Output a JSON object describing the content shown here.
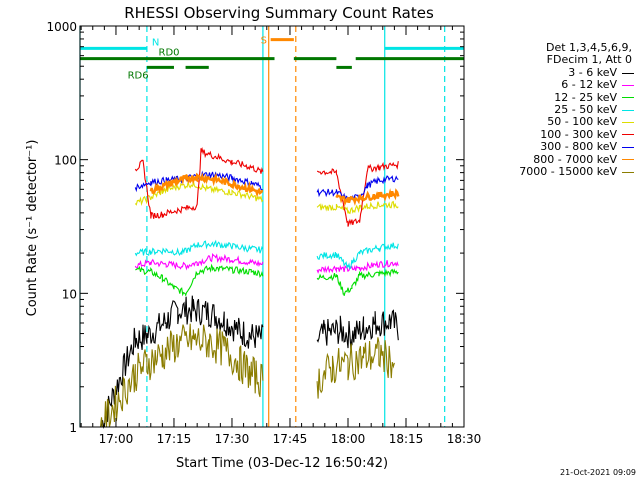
{
  "chart_data": {
    "type": "line",
    "title": "RHESSI Observing Summary Count Rates",
    "xlabel": "Start Time (03-Dec-12 16:50:42)",
    "ylabel": "Count Rate (s⁻¹ detector⁻¹)",
    "yscale": "log",
    "ylim": [
      1,
      1000
    ],
    "xlim": [
      "16:50:42",
      "18:30:00"
    ],
    "x_ticks": [
      "17:00",
      "17:15",
      "17:30",
      "17:45",
      "18:00",
      "18:15",
      "18:30"
    ],
    "y_ticks": [
      "1",
      "10",
      "100",
      "1000"
    ],
    "legend_header": [
      "Det 1,3,4,5,6,9,",
      "FDecim 1, Att 0"
    ],
    "legend_position": "right",
    "series": [
      {
        "name": "3 - 6 keV",
        "color": "#000000",
        "segments": [
          {
            "x": [
              "16:56:00",
              "17:05:00",
              "17:08:00",
              "17:13:00",
              "17:16:00",
              "17:20:00",
              "17:24:00",
              "17:28:00",
              "17:32:00",
              "17:35:00",
              "17:38:00"
            ],
            "y": [
              1,
              4.5,
              4.8,
              6.2,
              7.5,
              7.5,
              7.2,
              6.3,
              5.2,
              4.8,
              4.6
            ]
          },
          {
            "x": [
              "17:52:00",
              "17:54:00",
              "17:58:00",
              "18:01:00",
              "18:04:00",
              "18:07:00",
              "18:11:00",
              "18:13:00"
            ],
            "y": [
              4.5,
              5.0,
              5.3,
              4.8,
              5.5,
              6.0,
              6.2,
              5.5
            ]
          }
        ]
      },
      {
        "name": "6 - 12 keV",
        "color": "#ff00ff",
        "segments": [
          {
            "x": [
              "17:05:00",
              "17:09:00",
              "17:13:00",
              "17:18:00",
              "17:21:00",
              "17:25:00",
              "17:30:00",
              "17:35:00",
              "17:38:00"
            ],
            "y": [
              16,
              17,
              16.5,
              16,
              17,
              18.5,
              18,
              17,
              16.5
            ]
          },
          {
            "x": [
              "17:52:00",
              "17:57:00",
              "18:00:00",
              "18:03:00",
              "18:08:00",
              "18:13:00"
            ],
            "y": [
              15,
              15.5,
              15,
              15.5,
              16.5,
              17
            ]
          }
        ]
      },
      {
        "name": "12 - 25 keV",
        "color": "#00dd00",
        "segments": [
          {
            "x": [
              "17:05:00",
              "17:09:00",
              "17:12:00",
              "17:15:00",
              "17:18:00",
              "17:21:00",
              "17:25:00",
              "17:30:00",
              "17:35:00",
              "17:38:00"
            ],
            "y": [
              15,
              14.5,
              13,
              11,
              10,
              14.5,
              15.5,
              15,
              14.5,
              14
            ]
          },
          {
            "x": [
              "17:52:00",
              "17:57:00",
              "17:59:00",
              "18:01:00",
              "18:03:00",
              "18:08:00",
              "18:13:00"
            ],
            "y": [
              13,
              13.5,
              10,
              11,
              13.5,
              14,
              14.5
            ]
          }
        ]
      },
      {
        "name": "25 - 50 keV",
        "color": "#00e5e5",
        "segments": [
          {
            "x": [
              "17:05:00",
              "17:09:00",
              "17:13:00",
              "17:17:00",
              "17:21:00",
              "17:25:00",
              "17:30:00",
              "17:35:00",
              "17:38:00"
            ],
            "y": [
              20,
              20.5,
              21,
              20,
              23,
              23.5,
              22.5,
              21.5,
              21
            ]
          },
          {
            "x": [
              "17:52:00",
              "17:57:00",
              "18:00:00",
              "18:03:00",
              "18:08:00",
              "18:13:00"
            ],
            "y": [
              19,
              19.5,
              15.5,
              20,
              22,
              23
            ]
          }
        ]
      },
      {
        "name": "50 - 100 keV",
        "color": "#dddd00",
        "segments": [
          {
            "x": [
              "17:05:00",
              "17:09:00",
              "17:12:00",
              "17:16:00",
              "17:20:00",
              "17:24:00",
              "17:30:00",
              "17:35:00",
              "17:38:00"
            ],
            "y": [
              47,
              52,
              58,
              63,
              66,
              60,
              57,
              53,
              50
            ]
          },
          {
            "x": [
              "17:52:00",
              "17:57:00",
              "18:00:00",
              "18:03:00",
              "18:08:00",
              "18:13:00"
            ],
            "y": [
              44,
              44,
              41,
              44,
              46,
              46
            ]
          }
        ]
      },
      {
        "name": "100 - 300 keV",
        "color": "#ee0000",
        "segments": [
          {
            "x": [
              "17:05:00",
              "17:07:00",
              "17:09:00",
              "17:12:00",
              "17:16:00",
              "17:21:00",
              "17:22:00",
              "17:26:00",
              "17:30:00",
              "17:35:00",
              "17:38:00"
            ],
            "y": [
              85,
              95,
              38,
              39,
              42,
              45,
              115,
              105,
              96,
              88,
              80
            ]
          },
          {
            "x": [
              "17:52:00",
              "17:57:00",
              "18:00:00",
              "18:03:00",
              "18:05:00",
              "18:08:00",
              "18:13:00"
            ],
            "y": [
              82,
              80,
              33,
              35,
              85,
              88,
              92
            ]
          }
        ]
      },
      {
        "name": "300 - 800 keV",
        "color": "#0000ee",
        "segments": [
          {
            "x": [
              "17:05:00",
              "17:09:00",
              "17:13:00",
              "17:18:00",
              "17:21:00",
              "17:25:00",
              "17:30:00",
              "17:35:00",
              "17:38:00"
            ],
            "y": [
              62,
              68,
              70,
              72,
              76,
              78,
              73,
              67,
              62
            ]
          },
          {
            "x": [
              "17:52:00",
              "17:57:00",
              "18:00:00",
              "18:03:00",
              "18:05:00",
              "18:08:00",
              "18:13:00"
            ],
            "y": [
              57,
              57,
              50,
              53,
              64,
              70,
              73
            ]
          }
        ]
      },
      {
        "name": "800 - 7000 keV",
        "color": "#ff8800",
        "segments": [
          {
            "x": [
              "17:09:00",
              "17:12:00",
              "17:15:00",
              "17:18:00",
              "17:21:00",
              "17:25:00",
              "17:30:00",
              "17:35:00",
              "17:38:00"
            ],
            "y": [
              58,
              63,
              68,
              72,
              74,
              72,
              66,
              60,
              56
            ]
          },
          {
            "x": [
              "17:57:00",
              "18:00:00",
              "18:03:00",
              "18:08:00",
              "18:13:00"
            ],
            "y": [
              52,
              50,
              52,
              54,
              56
            ]
          }
        ]
      },
      {
        "name": "7000 - 15000 keV",
        "color": "#8b7d00",
        "segments": [
          {
            "x": [
              "16:56:00",
              "17:05:00",
              "17:08:00",
              "17:12:00",
              "17:16:00",
              "17:20:00",
              "17:24:00",
              "17:28:00",
              "17:32:00",
              "17:35:00",
              "17:38:00"
            ],
            "y": [
              1,
              2.5,
              3.0,
              3.5,
              4.2,
              4.5,
              4.3,
              3.8,
              3.0,
              2.5,
              2.2
            ]
          },
          {
            "x": [
              "17:52:00",
              "17:56:00",
              "18:00:00",
              "18:04:00",
              "18:08:00",
              "18:12:00"
            ],
            "y": [
              2.2,
              2.8,
              3.0,
              3.3,
              3.5,
              3.0
            ]
          }
        ]
      }
    ],
    "annotations": {
      "vertical_lines": [
        {
          "x": "16:50:42",
          "style": "solid",
          "color": "#00e5e5"
        },
        {
          "x": "17:08:00",
          "style": "dashed",
          "color": "#00e5e5"
        },
        {
          "x": "17:38:00",
          "style": "solid",
          "color": "#00e5e5"
        },
        {
          "x": "17:39:30",
          "style": "solid",
          "color": "#ff8800"
        },
        {
          "x": "17:46:30",
          "style": "dashed",
          "color": "#ff8800"
        },
        {
          "x": "18:09:30",
          "style": "solid",
          "color": "#00e5e5"
        },
        {
          "x": "18:25:00",
          "style": "dashed",
          "color": "#00e5e5"
        }
      ],
      "flag_bars": [
        {
          "label": "N",
          "color": "#00e5e5",
          "y": 680,
          "segments": [
            [
              "16:50:42",
              "17:08:00"
            ],
            [
              "18:09:30",
              "18:30:00"
            ]
          ]
        },
        {
          "label": "S",
          "color": "#ff8800",
          "y": 790,
          "segments": [
            [
              "17:40:00",
              "17:46:00"
            ]
          ]
        },
        {
          "label": "RD0",
          "color": "#007700",
          "y": 570,
          "segments": [
            [
              "16:50:42",
              "17:41:00"
            ],
            [
              "17:46:00",
              "17:57:00"
            ],
            [
              "18:02:00",
              "18:30:00"
            ]
          ]
        },
        {
          "label": "RD6",
          "color": "#007700",
          "y": 490,
          "segments": [
            [
              "17:08:00",
              "17:15:00"
            ],
            [
              "17:18:00",
              "17:24:00"
            ],
            [
              "17:57:00",
              "18:01:00"
            ]
          ]
        }
      ]
    }
  },
  "footer": {
    "date_stamp": "21-Oct-2021 09:09"
  }
}
